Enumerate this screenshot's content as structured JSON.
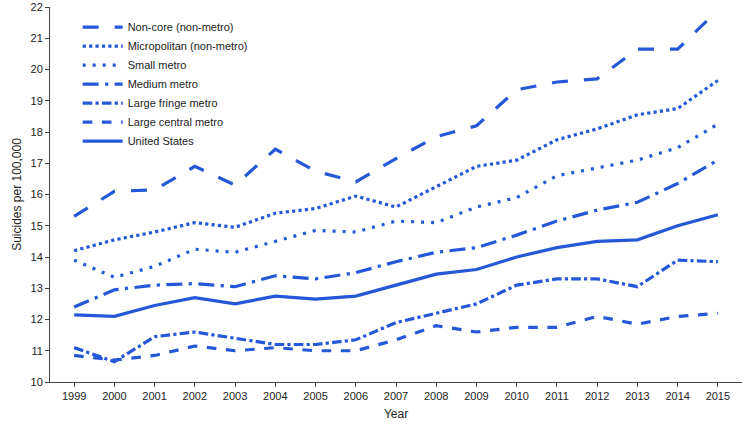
{
  "chart_data": {
    "type": "line",
    "x_label": "Year",
    "y_label": "Suicides per 100,000",
    "x": [
      1999,
      2000,
      2001,
      2002,
      2003,
      2004,
      2005,
      2006,
      2007,
      2008,
      2009,
      2010,
      2011,
      2012,
      2013,
      2014,
      2015
    ],
    "xlim": [
      1998.4,
      2015.6
    ],
    "xticks": [
      1999,
      2000,
      2001,
      2002,
      2003,
      2004,
      2005,
      2006,
      2007,
      2008,
      2009,
      2010,
      2011,
      2012,
      2013,
      2014,
      2015
    ],
    "ylim": [
      10,
      22
    ],
    "yticks": [
      10,
      11,
      12,
      13,
      14,
      15,
      16,
      17,
      18,
      19,
      20,
      21,
      22
    ],
    "grid": false,
    "legend": "top-left",
    "series": [
      {
        "name": "Non-core (non-metro)",
        "color": "#2458d6",
        "line_style": "longdash",
        "values": [
          15.3,
          16.1,
          16.15,
          16.9,
          16.3,
          17.45,
          16.75,
          16.4,
          17.15,
          17.85,
          18.2,
          19.35,
          19.6,
          19.7,
          20.65,
          20.65,
          21.9
        ]
      },
      {
        "name": "Micropolitan (non-metro)",
        "color": "#2458d6",
        "line_style": "dot",
        "values": [
          14.2,
          14.55,
          14.8,
          15.1,
          14.95,
          15.4,
          15.55,
          15.95,
          15.6,
          16.25,
          16.9,
          17.1,
          17.75,
          18.1,
          18.55,
          18.75,
          19.65
        ]
      },
      {
        "name": "Small metro",
        "color": "#2458d6",
        "line_style": "spaced_dot",
        "values": [
          13.9,
          13.35,
          13.7,
          14.25,
          14.15,
          14.5,
          14.85,
          14.8,
          15.15,
          15.1,
          15.6,
          15.9,
          16.6,
          16.85,
          17.1,
          17.5,
          18.25
        ]
      },
      {
        "name": "Medium metro",
        "color": "#2458d6",
        "line_style": "longdashdot",
        "values": [
          12.4,
          12.95,
          13.1,
          13.15,
          13.05,
          13.4,
          13.3,
          13.5,
          13.85,
          14.15,
          14.3,
          14.7,
          15.15,
          15.5,
          15.75,
          16.35,
          17.1
        ]
      },
      {
        "name": "Large fringe metro",
        "color": "#2458d6",
        "line_style": "dashdot",
        "values": [
          11.1,
          10.65,
          11.45,
          11.6,
          11.4,
          11.2,
          11.2,
          11.35,
          11.9,
          12.2,
          12.5,
          13.1,
          13.3,
          13.3,
          13.05,
          13.9,
          13.85
        ]
      },
      {
        "name": "Large central metro",
        "color": "#2458d6",
        "line_style": "dash",
        "values": [
          10.85,
          10.7,
          10.85,
          11.15,
          11.0,
          11.1,
          11.0,
          11.0,
          11.35,
          11.8,
          11.6,
          11.75,
          11.75,
          12.1,
          11.85,
          12.1,
          12.2
        ]
      },
      {
        "name": "United States",
        "color": "#2458d6",
        "line_style": "solid",
        "values": [
          12.15,
          12.1,
          12.45,
          12.7,
          12.5,
          12.75,
          12.65,
          12.75,
          13.1,
          13.45,
          13.6,
          14.0,
          14.3,
          14.5,
          14.55,
          15.0,
          15.35
        ]
      }
    ]
  }
}
